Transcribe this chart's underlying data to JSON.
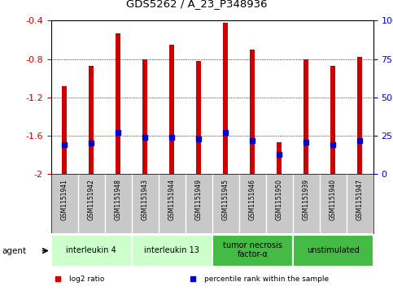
{
  "title": "GDS5262 / A_23_P348936",
  "samples": [
    "GSM1151941",
    "GSM1151942",
    "GSM1151948",
    "GSM1151943",
    "GSM1151944",
    "GSM1151949",
    "GSM1151945",
    "GSM1151946",
    "GSM1151950",
    "GSM1151939",
    "GSM1151940",
    "GSM1151947"
  ],
  "log2_ratios": [
    -1.08,
    -0.87,
    -0.53,
    -0.8,
    -0.65,
    -0.82,
    -0.42,
    -0.7,
    -1.67,
    -0.8,
    -0.87,
    -0.78
  ],
  "percentile_ranks": [
    19,
    20,
    27,
    24,
    24,
    23,
    27,
    22,
    13,
    21,
    19,
    22
  ],
  "groups": [
    {
      "label": "interleukin 4",
      "samples": [
        0,
        1,
        2
      ],
      "color": "#ccffcc"
    },
    {
      "label": "interleukin 13",
      "samples": [
        3,
        4,
        5
      ],
      "color": "#ccffcc"
    },
    {
      "label": "tumor necrosis\nfactor-α",
      "samples": [
        6,
        7,
        8
      ],
      "color": "#44bb44"
    },
    {
      "label": "unstimulated",
      "samples": [
        9,
        10,
        11
      ],
      "color": "#44bb44"
    }
  ],
  "ylim": [
    -2.0,
    -0.4
  ],
  "yticks": [
    -2.0,
    -1.6,
    -1.2,
    -0.8,
    -0.4
  ],
  "y2ticks": [
    0,
    25,
    50,
    75,
    100
  ],
  "bar_color": "#cc0000",
  "marker_color": "#0000cc",
  "bar_width": 0.18,
  "background_color": "#ffffff",
  "axis_label_color_left": "#cc0000",
  "axis_label_color_right": "#0000cc",
  "sample_bg": "#c8c8c8",
  "legend_items": [
    {
      "label": "log2 ratio",
      "color": "#cc0000",
      "marker": "s"
    },
    {
      "label": "percentile rank within the sample",
      "color": "#0000cc",
      "marker": "s"
    }
  ]
}
